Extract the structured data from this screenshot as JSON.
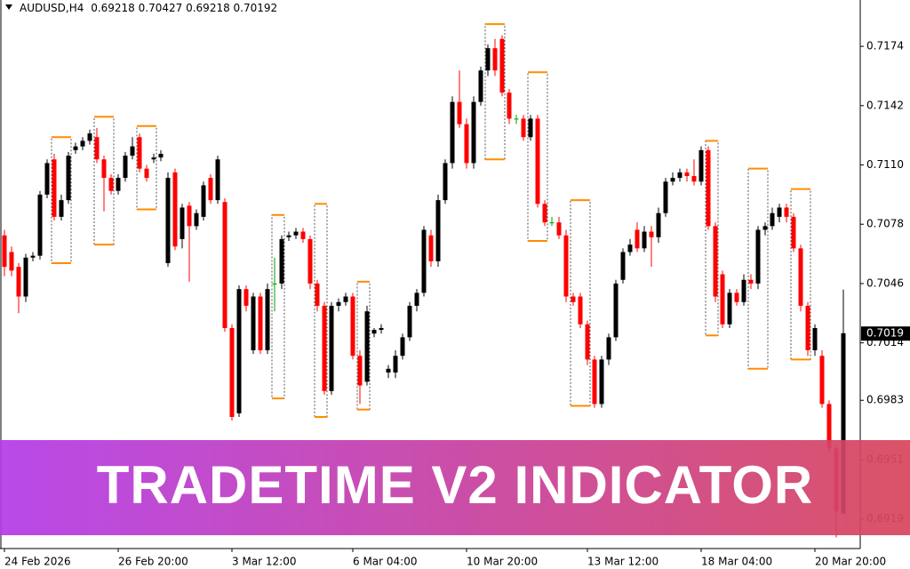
{
  "chart_data": {
    "type": "candlestick",
    "symbol": "AUDUSD,H4",
    "ylim": [
      0.6903,
      0.7199
    ],
    "yticks": [
      0.7174,
      0.7142,
      {
        "value": 0.711,
        "label": "0.7110"
      },
      0.7078,
      0.7046,
      0.7014,
      0.6983,
      0.6951,
      0.6919
    ],
    "current_price": 0.7019,
    "up_color": "#000000",
    "down_color": "#ff0000",
    "doji_color": "#00a000",
    "box_color": "#ff8c00",
    "categories": [
      "24 Feb 2026",
      null,
      null,
      null,
      null,
      null,
      null,
      null,
      null,
      null,
      null,
      null,
      null,
      null,
      null,
      null,
      "26 Feb 20:00",
      null,
      null,
      null,
      null,
      null,
      null,
      null,
      null,
      null,
      null,
      null,
      null,
      null,
      null,
      null,
      "3 Mar 12:00",
      null,
      null,
      null,
      null,
      null,
      null,
      null,
      null,
      null,
      null,
      null,
      null,
      null,
      null,
      null,
      null,
      "6 Mar 04:00",
      null,
      null,
      null,
      null,
      null,
      null,
      null,
      null,
      null,
      null,
      null,
      null,
      null,
      null,
      null,
      "10 Mar 20:00",
      null,
      null,
      null,
      null,
      null,
      null,
      null,
      null,
      null,
      null,
      null,
      null,
      null,
      null,
      null,
      null,
      "13 Mar 12:00",
      null,
      null,
      null,
      null,
      null,
      null,
      null,
      null,
      null,
      null,
      null,
      null,
      null,
      null,
      null,
      "18 Mar 04:00",
      null,
      null,
      null,
      null,
      null,
      null,
      null,
      null,
      null,
      null,
      null,
      null,
      null,
      null,
      null,
      "20 Mar 20:00",
      null,
      null,
      null,
      null
    ],
    "candles": [
      [
        0.7072,
        0.7075,
        0.705,
        0.7055
      ],
      [
        0.7063,
        0.7066,
        0.705,
        0.7053
      ],
      [
        0.7055,
        0.7057,
        0.703,
        0.7039
      ],
      [
        0.7039,
        0.7062,
        0.7036,
        0.706
      ],
      [
        0.706,
        0.7063,
        0.7058,
        0.7061
      ],
      [
        0.7061,
        0.7096,
        0.7059,
        0.7094
      ],
      [
        0.7094,
        0.7113,
        0.7092,
        0.7111
      ],
      [
        0.7113,
        0.7116,
        0.708,
        0.7082
      ],
      [
        0.7082,
        0.7094,
        0.708,
        0.7091
      ],
      [
        0.7091,
        0.7117,
        0.7089,
        0.7115
      ],
      [
        0.7118,
        0.7122,
        0.7116,
        0.712
      ],
      [
        0.712,
        0.7125,
        0.7118,
        0.7123
      ],
      [
        0.7123,
        0.7129,
        0.7121,
        0.7127
      ],
      [
        0.7125,
        0.713,
        0.7111,
        0.7113
      ],
      [
        0.7113,
        0.7115,
        0.7085,
        0.7103
      ],
      [
        0.7103,
        0.7105,
        0.7094,
        0.7096
      ],
      [
        0.7096,
        0.7105,
        0.7094,
        0.7103
      ],
      [
        0.7103,
        0.7117,
        0.7101,
        0.7115
      ],
      [
        0.7115,
        0.7125,
        0.7113,
        0.712
      ],
      [
        0.7125,
        0.7127,
        0.7106,
        0.7108
      ],
      [
        0.7108,
        0.711,
        0.7101,
        0.7103
      ],
      [
        0.7113,
        0.7116,
        0.7111,
        0.7114
      ],
      [
        0.7114,
        0.7118,
        0.7112,
        0.7116
      ],
      [
        0.7057,
        0.7106,
        0.7055,
        0.7103
      ],
      [
        0.7106,
        0.7108,
        0.7064,
        0.7066
      ],
      [
        0.707,
        0.7089,
        0.7065,
        0.7087
      ],
      [
        0.7088,
        0.709,
        0.7047,
        0.7077
      ],
      [
        0.7077,
        0.7086,
        0.7075,
        0.7084
      ],
      [
        0.7082,
        0.7101,
        0.708,
        0.7099
      ],
      [
        0.7103,
        0.7105,
        0.7089,
        0.7091
      ],
      [
        0.7091,
        0.7115,
        0.7089,
        0.7113
      ],
      [
        0.709,
        0.7092,
        0.702,
        0.7022
      ],
      [
        0.7022,
        0.7024,
        0.6972,
        0.6974
      ],
      [
        0.6976,
        0.7045,
        0.6974,
        0.7043
      ],
      [
        0.7043,
        0.7045,
        0.7031,
        0.7034
      ],
      [
        0.701,
        0.7041,
        0.7008,
        0.7039
      ],
      [
        0.7039,
        0.7041,
        0.7008,
        0.701
      ],
      [
        0.701,
        0.7046,
        0.7008,
        0.7043
      ],
      [
        0.7046,
        0.706,
        0.7031,
        0.7046
      ],
      [
        0.7046,
        0.7072,
        0.7043,
        0.707
      ],
      [
        0.7071,
        0.7074,
        0.7069,
        0.7072
      ],
      [
        0.7072,
        0.7076,
        0.707,
        0.7074
      ],
      [
        0.7074,
        0.7076,
        0.7068,
        0.707
      ],
      [
        0.707,
        0.7072,
        0.7043,
        0.7046
      ],
      [
        0.7046,
        0.7048,
        0.7031,
        0.7034
      ],
      [
        0.7034,
        0.7036,
        0.6986,
        0.6988
      ],
      [
        0.6988,
        0.7036,
        0.6986,
        0.7034
      ],
      [
        0.7034,
        0.7038,
        0.7031,
        0.7036
      ],
      [
        0.7036,
        0.7041,
        0.7034,
        0.7039
      ],
      [
        0.7039,
        0.7041,
        0.7005,
        0.7007
      ],
      [
        0.7007,
        0.701,
        0.6981,
        0.6991
      ],
      [
        0.6993,
        0.7034,
        0.6991,
        0.7031
      ],
      [
        0.7019,
        0.7022,
        0.7017,
        0.7021
      ],
      [
        0.7021,
        0.7024,
        0.7019,
        0.7022
      ],
      [
        0.6998,
        0.7002,
        0.6995,
        0.7
      ],
      [
        0.6998,
        0.701,
        0.6995,
        0.7007
      ],
      [
        0.7007,
        0.7019,
        0.7005,
        0.7017
      ],
      [
        0.7017,
        0.7036,
        0.7015,
        0.7034
      ],
      [
        0.7034,
        0.7043,
        0.7031,
        0.7041
      ],
      [
        0.7041,
        0.7077,
        0.7039,
        0.7075
      ],
      [
        0.7072,
        0.7075,
        0.7055,
        0.7058
      ],
      [
        0.7058,
        0.7094,
        0.7055,
        0.7091
      ],
      [
        0.7091,
        0.7113,
        0.7089,
        0.7111
      ],
      [
        0.7111,
        0.7147,
        0.7108,
        0.7144
      ],
      [
        0.7144,
        0.7161,
        0.713,
        0.7132
      ],
      [
        0.7132,
        0.7135,
        0.7108,
        0.7111
      ],
      [
        0.7111,
        0.7147,
        0.7108,
        0.7144
      ],
      [
        0.7144,
        0.7163,
        0.7142,
        0.7161
      ],
      [
        0.7161,
        0.7175,
        0.7158,
        0.7173
      ],
      [
        0.7173,
        0.7178,
        0.7158,
        0.7161
      ],
      [
        0.7178,
        0.718,
        0.7147,
        0.7149
      ],
      [
        0.7149,
        0.7151,
        0.7132,
        0.7135
      ],
      [
        0.7135,
        0.7137,
        0.7132,
        0.7135
      ],
      [
        0.7135,
        0.7137,
        0.7123,
        0.7125
      ],
      [
        0.7125,
        0.7137,
        0.7123,
        0.7135
      ],
      [
        0.7135,
        0.7137,
        0.7087,
        0.7089
      ],
      [
        0.7089,
        0.7091,
        0.7077,
        0.7079
      ],
      [
        0.7079,
        0.7082,
        0.7077,
        0.7079
      ],
      [
        0.7079,
        0.7082,
        0.707,
        0.7072
      ],
      [
        0.7072,
        0.7075,
        0.7036,
        0.7039
      ],
      [
        0.7039,
        0.7041,
        0.7034,
        0.7036
      ],
      [
        0.7039,
        0.7041,
        0.7022,
        0.7024
      ],
      [
        0.7024,
        0.7026,
        0.7002,
        0.7005
      ],
      [
        0.7005,
        0.7007,
        0.6979,
        0.6981
      ],
      [
        0.6981,
        0.7007,
        0.6979,
        0.7005
      ],
      [
        0.7005,
        0.7019,
        0.7002,
        0.7017
      ],
      [
        0.7017,
        0.7048,
        0.7015,
        0.7046
      ],
      [
        0.7048,
        0.7065,
        0.7046,
        0.7063
      ],
      [
        0.7063,
        0.707,
        0.7061,
        0.7067
      ],
      [
        0.7075,
        0.7079,
        0.7063,
        0.7065
      ],
      [
        0.7065,
        0.7077,
        0.7063,
        0.7074
      ],
      [
        0.7074,
        0.7077,
        0.7055,
        0.7071
      ],
      [
        0.7071,
        0.7087,
        0.7068,
        0.7084
      ],
      [
        0.7084,
        0.7103,
        0.7082,
        0.7101
      ],
      [
        0.7101,
        0.7106,
        0.7099,
        0.7103
      ],
      [
        0.7103,
        0.7108,
        0.7101,
        0.7106
      ],
      [
        0.7106,
        0.7108,
        0.7101,
        0.7104
      ],
      [
        0.7104,
        0.7113,
        0.7099,
        0.7101
      ],
      [
        0.7101,
        0.712,
        0.7099,
        0.7118
      ],
      [
        0.7118,
        0.712,
        0.7075,
        0.7077
      ],
      [
        0.7077,
        0.7079,
        0.7036,
        0.7039
      ],
      [
        0.7051,
        0.7053,
        0.7022,
        0.7024
      ],
      [
        0.7024,
        0.7043,
        0.7022,
        0.7041
      ],
      [
        0.7041,
        0.7043,
        0.7034,
        0.7036
      ],
      [
        0.7036,
        0.7051,
        0.7034,
        0.7048
      ],
      [
        0.7048,
        0.7051,
        0.7043,
        0.7046
      ],
      [
        0.7046,
        0.7077,
        0.7043,
        0.7075
      ],
      [
        0.7075,
        0.7079,
        0.7072,
        0.7077
      ],
      [
        0.7077,
        0.7087,
        0.7075,
        0.7084
      ],
      [
        0.7082,
        0.7089,
        0.7079,
        0.7087
      ],
      [
        0.7087,
        0.7089,
        0.7079,
        0.7082
      ],
      [
        0.7082,
        0.7084,
        0.7063,
        0.7065
      ],
      [
        0.7065,
        0.7067,
        0.7031,
        0.7034
      ],
      [
        0.7034,
        0.7036,
        0.7007,
        0.701
      ],
      [
        0.701,
        0.7024,
        0.7007,
        0.7022
      ],
      [
        0.7007,
        0.701,
        0.6979,
        0.6981
      ],
      [
        0.6981,
        0.6983,
        0.6955,
        0.6957
      ],
      [
        0.6957,
        0.6959,
        0.6909,
        0.6923
      ],
      [
        0.69218,
        0.70427,
        0.69218,
        0.70192
      ]
    ],
    "boxes": [
      {
        "start": 7,
        "end": 9,
        "high": 0.7125,
        "low": 0.7057
      },
      {
        "start": 13,
        "end": 15,
        "high": 0.7136,
        "low": 0.7067
      },
      {
        "start": 19,
        "end": 21,
        "high": 0.7131,
        "low": 0.7086
      },
      {
        "start": 38,
        "end": 39,
        "high": 0.7083,
        "low": 0.6984
      },
      {
        "start": 44,
        "end": 45,
        "high": 0.7089,
        "low": 0.6974
      },
      {
        "start": 50,
        "end": 51,
        "high": 0.7047,
        "low": 0.6978
      },
      {
        "start": 68,
        "end": 70,
        "high": 0.7186,
        "low": 0.7113
      },
      {
        "start": 74,
        "end": 76,
        "high": 0.716,
        "low": 0.7069
      },
      {
        "start": 80,
        "end": 82,
        "high": 0.7091,
        "low": 0.698
      },
      {
        "start": 99,
        "end": 100,
        "high": 0.7123,
        "low": 0.7018
      },
      {
        "start": 105,
        "end": 107,
        "high": 0.7108,
        "low": 0.7
      },
      {
        "start": 111,
        "end": 113,
        "high": 0.7097,
        "low": 0.7005
      }
    ]
  },
  "banner": "TRADETIME V2 INDICATOR"
}
